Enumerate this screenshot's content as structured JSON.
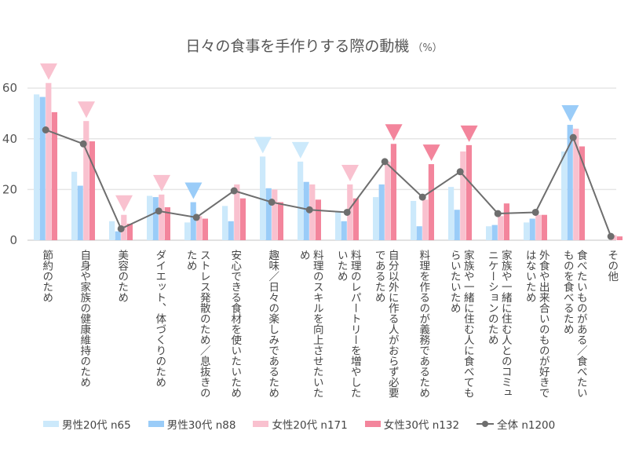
{
  "chart_data": {
    "type": "bar",
    "title": "日々の食事を手作りする際の動機",
    "unit": "（%）",
    "xlabel": "",
    "ylabel": "",
    "ylim": [
      0,
      65
    ],
    "yticks": [
      0,
      20,
      40,
      60
    ],
    "grid": true,
    "legend_position": "bottom",
    "categories": [
      "節約のため",
      "自身や家族の健康維持のため",
      "美容のため",
      "ダイエット、体づくりのため",
      "ストレス発散のため／息抜きの\nため",
      "安心できる食材を使いたいため",
      "趣味／日々の楽しみであるため",
      "料理のスキルを向上させたいた\nめ",
      "料理のレパートリーを増やした\nいため",
      "自分以外に作る人がおらず必要\nであるため",
      "料理を作るのが義務であるため",
      "家族や一緒に住む人に食べても\nらいたいため",
      "家族や一緒に住む人とのコミュ\nニケーションのため",
      "外食や出来合いのものが好きで\nはないため",
      "食べたいものがある／食べたい\nものを食べるため",
      "その他"
    ],
    "series": [
      {
        "name": "男性20代 n65",
        "kind": "bar",
        "color": "#cce9fb",
        "values": [
          57.5,
          27,
          7.5,
          17.5,
          7,
          13.5,
          33,
          31,
          11.5,
          17,
          15.5,
          21,
          5.5,
          7,
          35,
          0
        ]
      },
      {
        "name": "男性30代 n88",
        "kind": "bar",
        "color": "#9accf8",
        "values": [
          56.5,
          21.5,
          3.5,
          17,
          15,
          7.5,
          20.5,
          23,
          7.5,
          22,
          5.5,
          12,
          6,
          8.5,
          45.5,
          0
        ]
      },
      {
        "name": "女性20代 n171",
        "kind": "bar",
        "color": "#f9c1cf",
        "values": [
          62,
          47,
          10,
          18,
          9.5,
          22,
          20,
          22,
          22,
          31,
          16,
          35,
          9.5,
          10,
          44,
          2
        ]
      },
      {
        "name": "女性30代 n132",
        "kind": "bar",
        "color": "#f3859c",
        "values": [
          50.5,
          39,
          6.5,
          13,
          8.5,
          16.5,
          15,
          16,
          16.5,
          38,
          30,
          37.5,
          14.5,
          10,
          37,
          1.5
        ]
      },
      {
        "name": "全体 n1200",
        "kind": "line",
        "color": "#6e6e6e",
        "values": [
          43.5,
          38,
          4.5,
          11.5,
          9,
          19.5,
          15,
          12,
          11,
          31,
          17,
          27,
          10.5,
          11,
          40.5,
          1.5
        ]
      }
    ],
    "highlight_markers": [
      {
        "category_index": 0,
        "series_index": 2
      },
      {
        "category_index": 1,
        "series_index": 2
      },
      {
        "category_index": 2,
        "series_index": 2
      },
      {
        "category_index": 3,
        "series_index": 2
      },
      {
        "category_index": 4,
        "series_index": 1
      },
      {
        "category_index": 6,
        "series_index": 0
      },
      {
        "category_index": 7,
        "series_index": 0
      },
      {
        "category_index": 8,
        "series_index": 2
      },
      {
        "category_index": 9,
        "series_index": 3
      },
      {
        "category_index": 10,
        "series_index": 3
      },
      {
        "category_index": 11,
        "series_index": 3
      },
      {
        "category_index": 14,
        "series_index": 1
      }
    ]
  }
}
